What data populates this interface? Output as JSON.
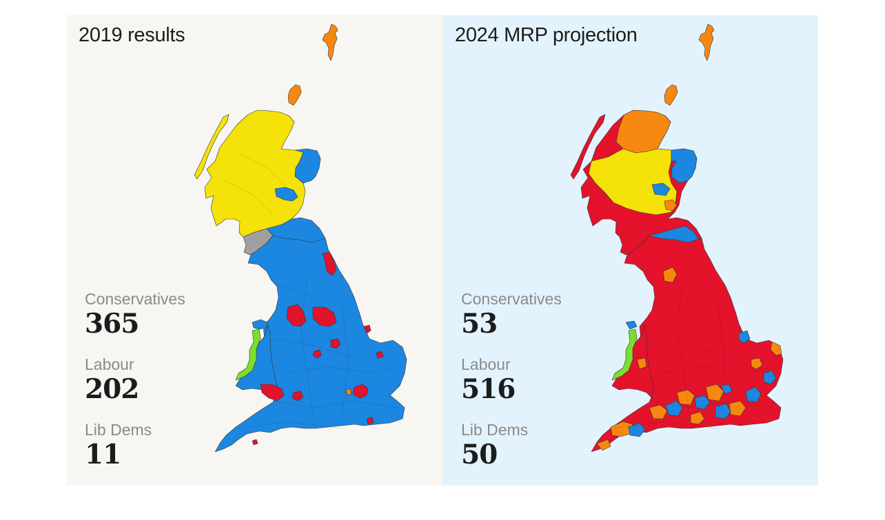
{
  "colors": {
    "conservative": "#1b87e0",
    "labour": "#e4122a",
    "snp": "#f4e208",
    "lib_dem": "#f7880f",
    "plaid_cymru": "#7cde2d",
    "green_or_other": "#a0a0a0",
    "panel_left_bg": "#f7f6f3",
    "panel_right_bg": "#e3f3fd",
    "border": "#333333"
  },
  "panels": [
    {
      "title": "2019 results",
      "stats": [
        {
          "label": "Conservatives",
          "value": "365"
        },
        {
          "label": "Labour",
          "value": "202"
        },
        {
          "label": "Lib Dems",
          "value": "11"
        }
      ]
    },
    {
      "title": "2024 MRP projection",
      "stats": [
        {
          "label": "Conservatives",
          "value": "53"
        },
        {
          "label": "Labour",
          "value": "516"
        },
        {
          "label": "Lib Dems",
          "value": "50"
        }
      ]
    }
  ]
}
